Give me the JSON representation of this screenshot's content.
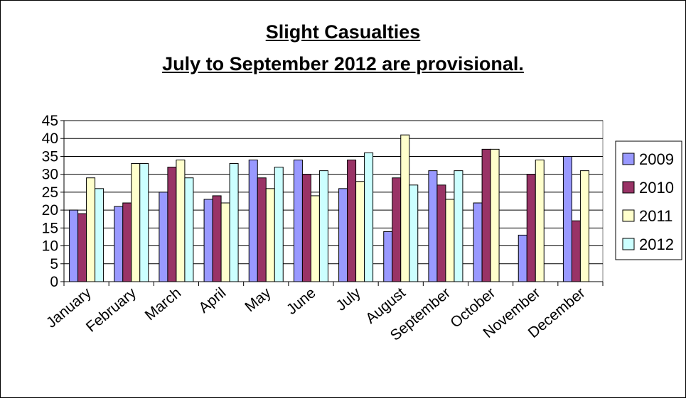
{
  "chart_data": {
    "type": "bar",
    "title": "Slight Casualties",
    "subtitle": "July to September 2012 are provisional.",
    "categories": [
      "January",
      "February",
      "March",
      "April",
      "May",
      "June",
      "July",
      "August",
      "September",
      "October",
      "November",
      "December"
    ],
    "series": [
      {
        "name": "2009",
        "color": "#9999ff",
        "values": [
          20,
          21,
          25,
          23,
          34,
          34,
          26,
          14,
          31,
          22,
          13,
          35
        ]
      },
      {
        "name": "2010",
        "color": "#993366",
        "values": [
          19,
          22,
          32,
          24,
          29,
          30,
          34,
          29,
          27,
          37,
          30,
          17
        ]
      },
      {
        "name": "2011",
        "color": "#ffffcc",
        "values": [
          29,
          33,
          34,
          22,
          26,
          24,
          28,
          41,
          23,
          37,
          34,
          31
        ]
      },
      {
        "name": "2012",
        "color": "#ccffff",
        "values": [
          26,
          33,
          29,
          33,
          32,
          31,
          36,
          27,
          31,
          null,
          null,
          null
        ]
      }
    ],
    "ylim": [
      0,
      45
    ],
    "yticks": [
      0,
      5,
      10,
      15,
      20,
      25,
      30,
      35,
      40,
      45
    ],
    "grid": true,
    "legend": "right"
  }
}
